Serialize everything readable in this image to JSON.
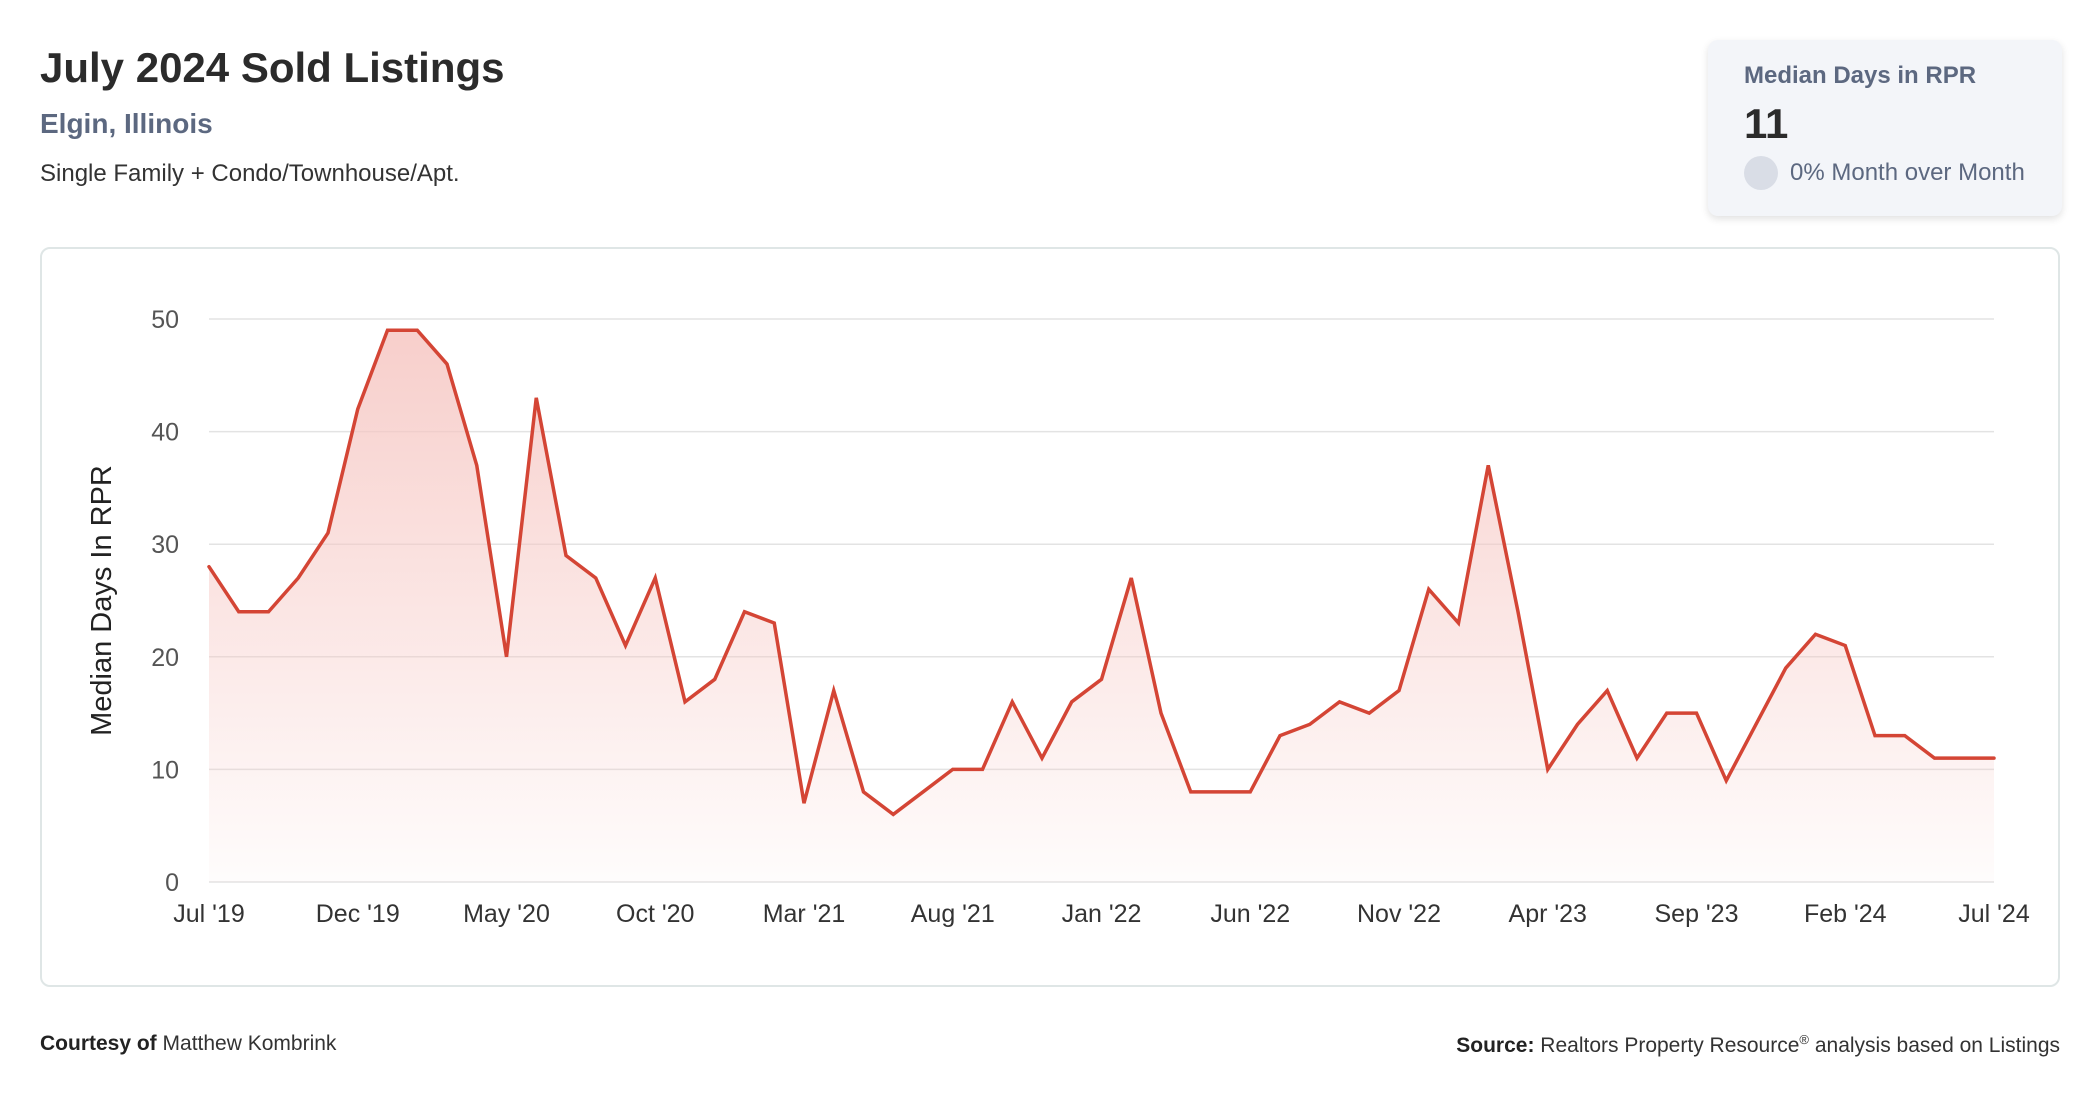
{
  "header": {
    "title": "July 2024 Sold Listings",
    "location": "Elgin, Illinois",
    "property_types": "Single Family + Condo/Townhouse/Apt."
  },
  "kpi": {
    "label": "Median Days in RPR",
    "value": "11",
    "change": "0% Month over Month"
  },
  "footer": {
    "courtesy_label": "Courtesy of",
    "courtesy_name": "Matthew Kombrink",
    "source_label": "Source:",
    "source_org": "Realtors Property Resource",
    "source_mark": "®",
    "source_rest": "analysis based on Listings"
  },
  "colors": {
    "line": "#d44535",
    "fill_top": "#f6c6c2",
    "grid": "#e3e3e3",
    "kpi_bg": "#f3f5f9"
  },
  "chart_data": {
    "type": "area",
    "title": "",
    "ylabel": "Median Days In RPR",
    "xlabel": "",
    "ylim": [
      0,
      50
    ],
    "yticks": [
      0,
      10,
      20,
      30,
      40,
      50
    ],
    "grid": true,
    "x_tick_labels": [
      "Jul '19",
      "Dec '19",
      "May '20",
      "Oct '20",
      "Mar '21",
      "Aug '21",
      "Jan '22",
      "Jun '22",
      "Nov '22",
      "Apr '23",
      "Sep '23",
      "Feb '24",
      "Jul '24"
    ],
    "x": [
      "Jul '19",
      "Aug '19",
      "Sep '19",
      "Oct '19",
      "Nov '19",
      "Dec '19",
      "Jan '20",
      "Feb '20",
      "Mar '20",
      "Apr '20",
      "May '20",
      "Jun '20",
      "Jul '20",
      "Aug '20",
      "Sep '20",
      "Oct '20",
      "Nov '20",
      "Dec '20",
      "Jan '21",
      "Feb '21",
      "Mar '21",
      "Apr '21",
      "May '21",
      "Jun '21",
      "Jul '21",
      "Aug '21",
      "Sep '21",
      "Oct '21",
      "Nov '21",
      "Dec '21",
      "Jan '22",
      "Feb '22",
      "Mar '22",
      "Apr '22",
      "May '22",
      "Jun '22",
      "Jul '22",
      "Aug '22",
      "Sep '22",
      "Oct '22",
      "Nov '22",
      "Dec '22",
      "Jan '23",
      "Feb '23",
      "Mar '23",
      "Apr '23",
      "May '23",
      "Jun '23",
      "Jul '23",
      "Aug '23",
      "Sep '23",
      "Oct '23",
      "Nov '23",
      "Dec '23",
      "Jan '24",
      "Feb '24",
      "Mar '24",
      "Apr '24",
      "May '24",
      "Jun '24",
      "Jul '24"
    ],
    "values": [
      28,
      24,
      24,
      27,
      31,
      42,
      49,
      49,
      46,
      37,
      20,
      43,
      29,
      27,
      21,
      27,
      16,
      18,
      24,
      23,
      7,
      17,
      8,
      6,
      8,
      10,
      10,
      16,
      11,
      16,
      18,
      27,
      15,
      8,
      8,
      8,
      13,
      14,
      16,
      15,
      17,
      26,
      23,
      37,
      24,
      10,
      14,
      17,
      11,
      15,
      15,
      9,
      14,
      19,
      22,
      21,
      13,
      13,
      11,
      11,
      11
    ]
  }
}
